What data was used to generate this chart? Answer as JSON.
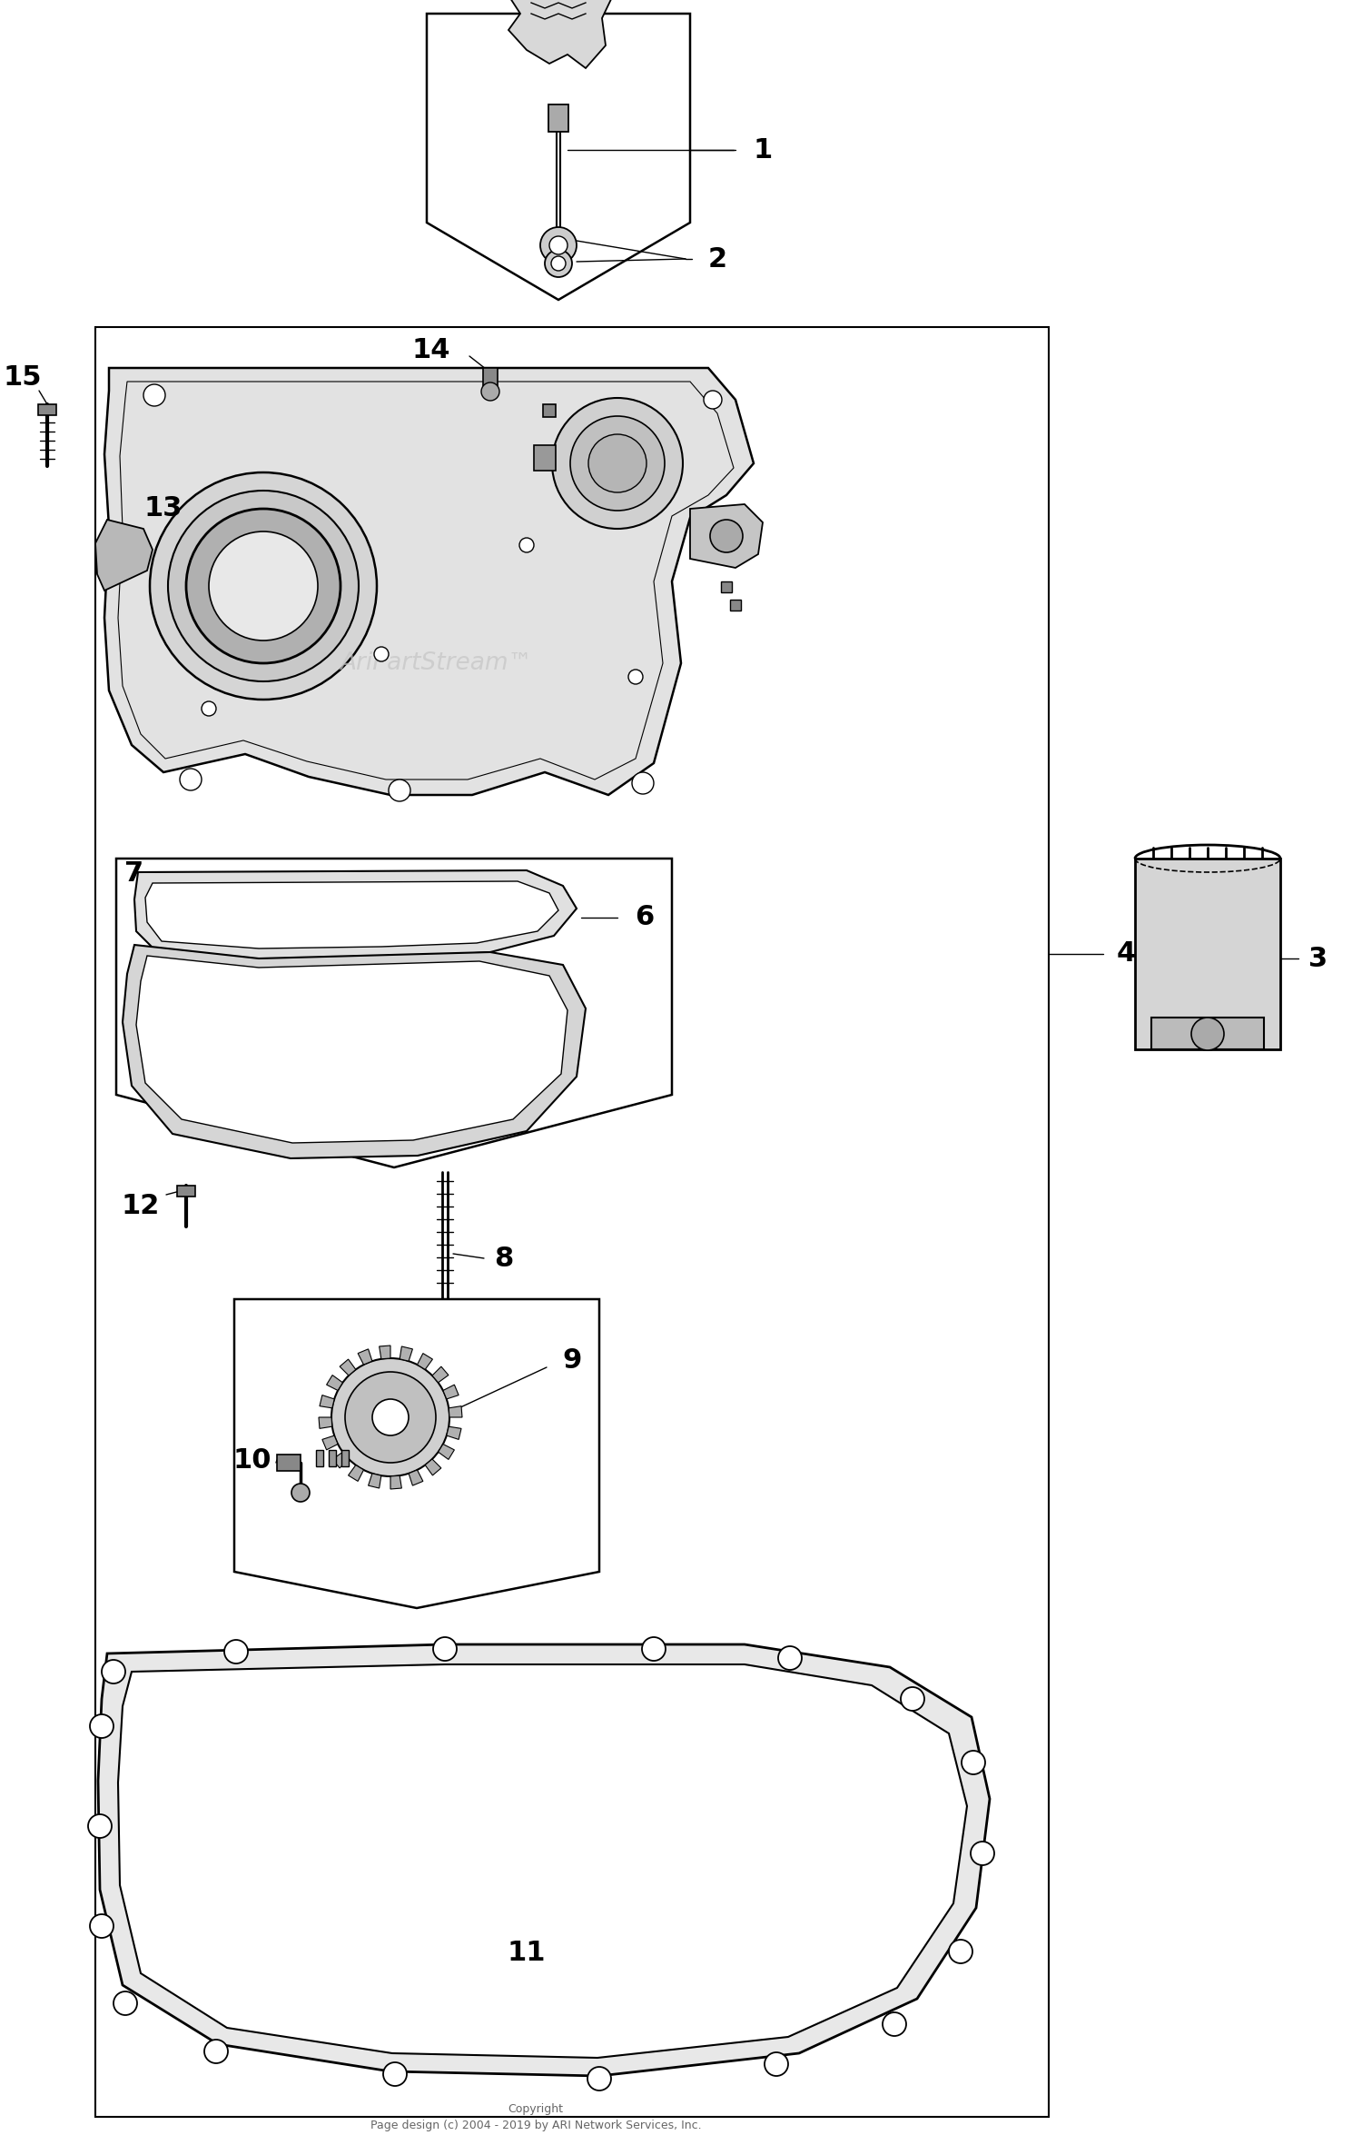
{
  "bg_color": "#ffffff",
  "copyright_text": "Copyright\nPage design (c) 2004 - 2019 by ARI Network Services, Inc.",
  "watermark": "AriPartStream™",
  "fig_width": 15.0,
  "fig_height": 23.72,
  "lw_main": 1.5,
  "lw_thin": 1.0,
  "lw_thick": 2.0
}
